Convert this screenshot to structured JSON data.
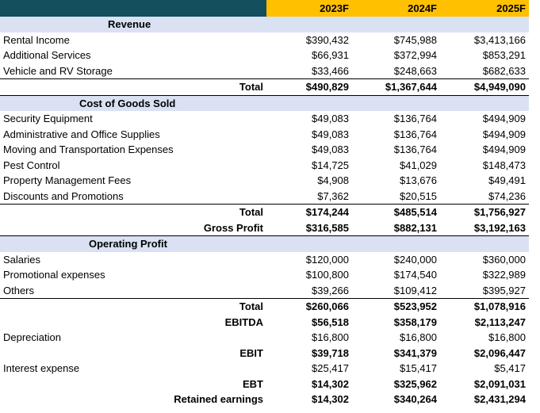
{
  "header": {
    "years": [
      "2023F",
      "2024F",
      "2025F"
    ],
    "accent_dark": "#134f5c",
    "accent_year": "#ffc000",
    "section_fill": "#d9e1f2"
  },
  "revenue": {
    "title": "Revenue",
    "rows": [
      {
        "label": "Rental Income",
        "values": [
          "$390,432",
          "$745,988",
          "$3,413,166"
        ]
      },
      {
        "label": "Additional Services",
        "values": [
          "$66,931",
          "$372,994",
          "$853,291"
        ]
      },
      {
        "label": "Vehicle and RV Storage",
        "values": [
          "$33,466",
          "$248,663",
          "$682,633"
        ]
      }
    ],
    "total": {
      "label": "Total",
      "values": [
        "$490,829",
        "$1,367,644",
        "$4,949,090"
      ]
    }
  },
  "cogs": {
    "title": "Cost of Goods Sold",
    "rows": [
      {
        "label": "Security Equipment",
        "values": [
          "$49,083",
          "$136,764",
          "$494,909"
        ]
      },
      {
        "label": "Administrative and Office Supplies",
        "values": [
          "$49,083",
          "$136,764",
          "$494,909"
        ]
      },
      {
        "label": "Moving and Transportation Expenses",
        "values": [
          "$49,083",
          "$136,764",
          "$494,909"
        ]
      },
      {
        "label": "Pest Control",
        "values": [
          "$14,725",
          "$41,029",
          "$148,473"
        ]
      },
      {
        "label": "Property Management Fees",
        "values": [
          "$4,908",
          "$13,676",
          "$49,491"
        ]
      },
      {
        "label": "Discounts and Promotions",
        "values": [
          "$7,362",
          "$20,515",
          "$74,236"
        ]
      }
    ],
    "total": {
      "label": "Total",
      "values": [
        "$174,244",
        "$485,514",
        "$1,756,927"
      ]
    },
    "gross_profit": {
      "label": "Gross Profit",
      "values": [
        "$316,585",
        "$882,131",
        "$3,192,163"
      ]
    }
  },
  "opex": {
    "title": "Operating Profit",
    "rows": [
      {
        "label": "Salaries",
        "values": [
          "$120,000",
          "$240,000",
          "$360,000"
        ]
      },
      {
        "label": "Promotional expenses",
        "values": [
          "$100,800",
          "$174,540",
          "$322,989"
        ]
      },
      {
        "label": "Others",
        "values": [
          "$39,266",
          "$109,412",
          "$395,927"
        ]
      }
    ],
    "total": {
      "label": "Total",
      "values": [
        "$260,066",
        "$523,952",
        "$1,078,916"
      ]
    },
    "ebitda": {
      "label": "EBITDA",
      "values": [
        "$56,518",
        "$358,179",
        "$2,113,247"
      ]
    }
  },
  "bottom": {
    "depreciation": {
      "label": "Depreciation",
      "values": [
        "$16,800",
        "$16,800",
        "$16,800"
      ]
    },
    "ebit": {
      "label": "EBIT",
      "values": [
        "$39,718",
        "$341,379",
        "$2,096,447"
      ]
    },
    "interest": {
      "label": "Interest expense",
      "values": [
        "$25,417",
        "$15,417",
        "$5,417"
      ]
    },
    "ebt": {
      "label": "EBT",
      "values": [
        "$14,302",
        "$325,962",
        "$2,091,031"
      ]
    },
    "retained": {
      "label": "Retained earnings",
      "values": [
        "$14,302",
        "$340,264",
        "$2,431,294"
      ]
    }
  }
}
